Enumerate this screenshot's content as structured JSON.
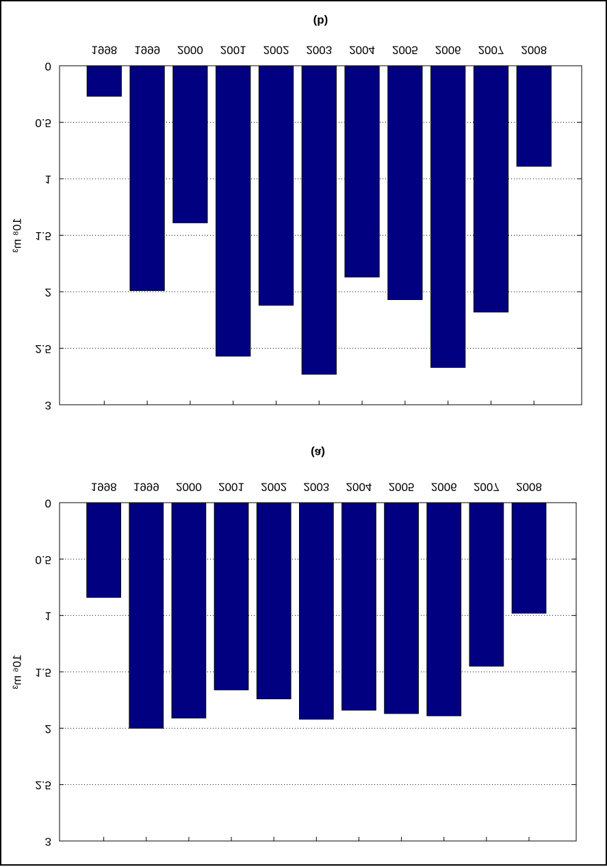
{
  "chart_data": [
    {
      "type": "bar",
      "title": "(b)",
      "ylabel": "10⁸ m³",
      "categories": [
        "1998",
        "1999",
        "2000",
        "2001",
        "2002",
        "2003",
        "2004",
        "2005",
        "2006",
        "2007",
        "2008"
      ],
      "values": [
        0.27,
        1.99,
        1.39,
        2.57,
        2.12,
        2.73,
        1.87,
        2.07,
        2.67,
        2.18,
        0.89
      ],
      "color": "#000080",
      "ylim": [
        0,
        3
      ],
      "yticks": [
        0,
        0.5,
        1,
        1.5,
        2,
        2.5,
        3
      ],
      "grid": true,
      "y_inverted": true
    },
    {
      "type": "bar",
      "title": "(a)",
      "ylabel": "10⁶ m³",
      "categories": [
        "1998",
        "1999",
        "2000",
        "2001",
        "2002",
        "2003",
        "2004",
        "2005",
        "2006",
        "2007",
        "2008"
      ],
      "values": [
        0.84,
        2.0,
        1.91,
        1.66,
        1.74,
        1.92,
        1.84,
        1.87,
        1.89,
        1.45,
        0.98
      ],
      "color": "#000080",
      "ylim": [
        0,
        3
      ],
      "yticks": [
        0,
        0.5,
        1,
        1.5,
        2,
        2.5,
        3
      ],
      "grid": true,
      "y_inverted": true
    }
  ]
}
